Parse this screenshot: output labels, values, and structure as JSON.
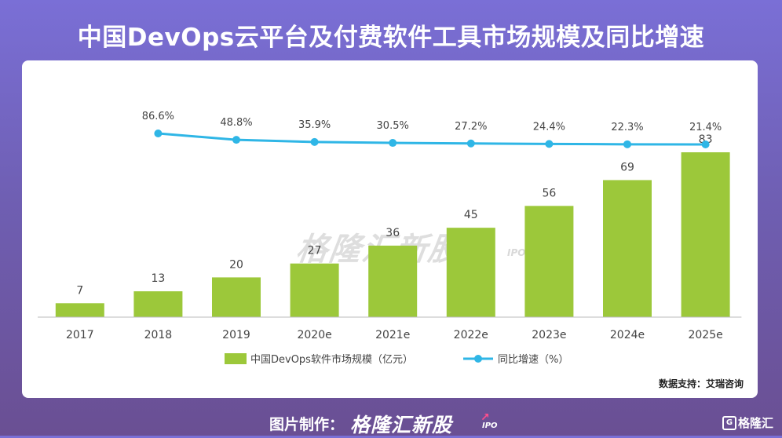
{
  "title": "中国DevOps云平台及付费软件工具市场规模及同比增速",
  "chart_data": {
    "type": "bar",
    "categories": [
      "2017",
      "2018",
      "2019",
      "2020e",
      "2021e",
      "2022e",
      "2023e",
      "2024e",
      "2025e"
    ],
    "series": [
      {
        "name": "中国DevOps软件市场规模（亿元）",
        "type": "bar",
        "color": "#9cc83a",
        "values": [
          7,
          13,
          20,
          27,
          36,
          45,
          56,
          69,
          83
        ]
      },
      {
        "name": "同比增速（%）",
        "type": "line",
        "color": "#2fb6e6",
        "values": [
          null,
          86.6,
          48.8,
          35.9,
          30.5,
          27.2,
          24.4,
          22.3,
          21.4
        ],
        "labels": [
          "",
          "86.6%",
          "48.8%",
          "35.9%",
          "30.5%",
          "27.2%",
          "24.4%",
          "22.3%",
          "21.4%"
        ]
      }
    ],
    "legend_position": "bottom",
    "grid": false
  },
  "source": "数据支持：艾瑞咨询",
  "watermark": {
    "brand": "格隆汇新股",
    "sub": "IPO"
  },
  "footer": {
    "label": "图片制作：",
    "brand": "格隆汇新股",
    "brand_sub": "IPO",
    "logo_glyph": "G",
    "logo_text": "格隆汇"
  }
}
